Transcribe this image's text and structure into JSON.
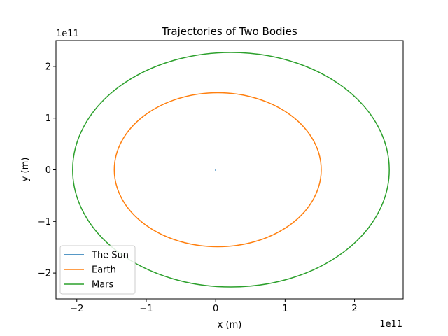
{
  "chart_data": {
    "type": "line",
    "title": "Trajectories of Two Bodies",
    "xlabel": "x (m)",
    "ylabel": "y (m)",
    "x_offset_text": "1e11",
    "y_offset_text": "1e11",
    "xlim": [
      -230000000000.0,
      270000000000.0
    ],
    "ylim": [
      -250000000000.0,
      250000000000.0
    ],
    "xticks": [
      {
        "value": -200000000000.0,
        "label": "−2"
      },
      {
        "value": -100000000000.0,
        "label": "−1"
      },
      {
        "value": 0,
        "label": "0"
      },
      {
        "value": 100000000000.0,
        "label": "1"
      },
      {
        "value": 200000000000.0,
        "label": "2"
      }
    ],
    "yticks": [
      {
        "value": -200000000000.0,
        "label": "−2"
      },
      {
        "value": -100000000000.0,
        "label": "−1"
      },
      {
        "value": 0,
        "label": "0"
      },
      {
        "value": 100000000000.0,
        "label": "1"
      },
      {
        "value": 200000000000.0,
        "label": "2"
      }
    ],
    "grid": false,
    "legend_position": "lower-left",
    "series": [
      {
        "name": "The Sun",
        "color": "#1f77b4",
        "shape": "ellipse",
        "cx": 0,
        "cy": 0,
        "rx": 0,
        "ry": 2000000000.0
      },
      {
        "name": "Earth",
        "color": "#ff7f0e",
        "shape": "ellipse",
        "cx": 3000000000.0,
        "cy": 0,
        "rx": 149000000000.0,
        "ry": 149000000000.0
      },
      {
        "name": "Mars",
        "color": "#2ca02c",
        "shape": "ellipse",
        "cx": 22000000000.0,
        "cy": 0,
        "rx": 228000000000.0,
        "ry": 227000000000.0
      }
    ]
  }
}
